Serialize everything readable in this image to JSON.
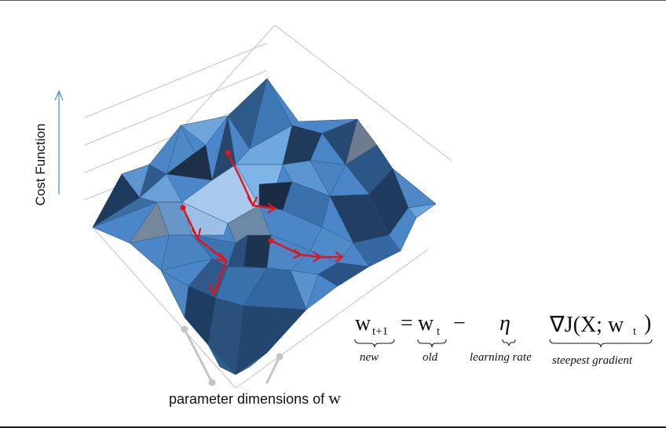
{
  "axes": {
    "y_label": "Cost Function",
    "x_label_text": "parameter dimensions of ",
    "x_label_var": "w"
  },
  "equation": {
    "lhs_var": "w",
    "lhs_sub": "t+1",
    "equals": "=",
    "old_var": "w",
    "old_sub": "t",
    "minus": "−",
    "eta": "η",
    "grad": "∇J(X; w",
    "grad_sub": "t",
    "grad_close": ")",
    "note_new": "new",
    "note_old": "old",
    "note_lr": "learning rate",
    "note_grad": "steepest gradient"
  },
  "colors": {
    "surface_light": "#7fb4e6",
    "surface_mid": "#4a86c8",
    "surface_dark": "#1e3a5c",
    "path": "#e0141c",
    "axis_arrow": "#4a90c8",
    "grid": "#bdbdbd"
  }
}
